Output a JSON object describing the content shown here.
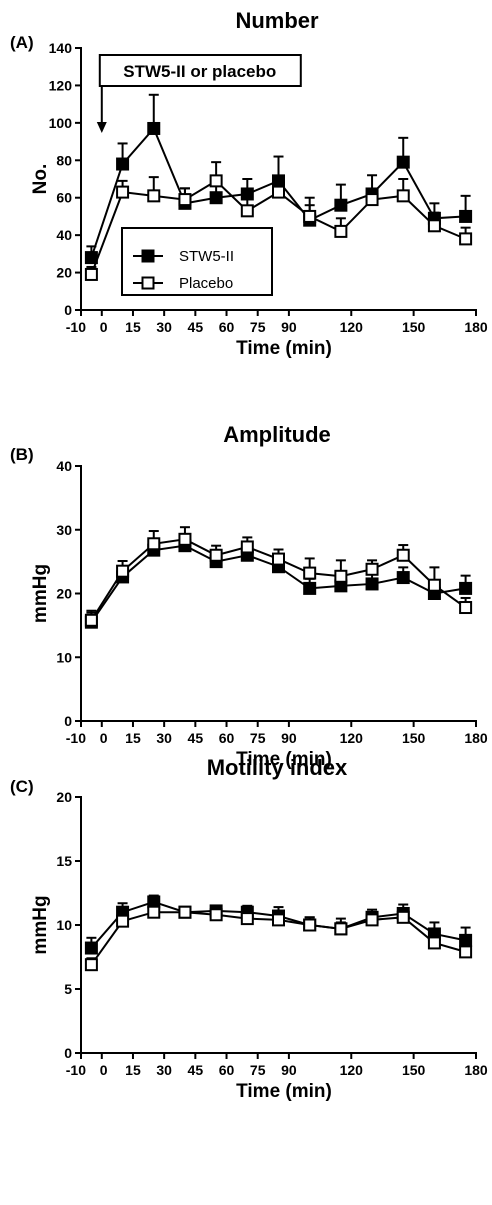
{
  "chart_data": [
    {
      "panel_label": "(A)",
      "type": "line",
      "title": "Number",
      "xlabel": "Time (min)",
      "ylabel": "No.",
      "xlim": [
        -10,
        180
      ],
      "ylim": [
        0,
        140
      ],
      "x_ticks": [
        -10,
        0,
        15,
        30,
        45,
        60,
        75,
        90,
        120,
        150,
        180
      ],
      "y_ticks": [
        0,
        20,
        40,
        60,
        80,
        100,
        120,
        140
      ],
      "legend": {
        "placement": "lower-left",
        "entries": [
          "STW5-II",
          "Placebo"
        ]
      },
      "annotation": {
        "text": "STW5-II or placebo",
        "arrow_at_x": 0
      },
      "series": [
        {
          "name": "STW5-II",
          "marker": "filled-square",
          "x": [
            -5,
            10,
            25,
            40,
            55,
            70,
            85,
            100,
            115,
            130,
            145,
            160,
            175
          ],
          "values": [
            28,
            78,
            97,
            57,
            60,
            62,
            69,
            48,
            56,
            62,
            79,
            49,
            50
          ],
          "error": [
            6,
            11,
            18,
            8,
            8,
            8,
            13,
            12,
            11,
            10,
            13,
            8,
            11
          ]
        },
        {
          "name": "Placebo",
          "marker": "open-square",
          "x": [
            -5,
            10,
            25,
            40,
            55,
            70,
            85,
            100,
            115,
            130,
            145,
            160,
            175
          ],
          "values": [
            19,
            63,
            61,
            59,
            69,
            53,
            63,
            50,
            42,
            59,
            61,
            45,
            38
          ],
          "error": [
            4,
            6,
            10,
            6,
            10,
            8,
            8,
            6,
            7,
            5,
            9,
            7,
            6
          ]
        }
      ]
    },
    {
      "panel_label": "(B)",
      "type": "line",
      "title": "Amplitude",
      "xlabel": "Time (min)",
      "ylabel": "mmHg",
      "xlim": [
        -10,
        180
      ],
      "ylim": [
        0,
        40
      ],
      "x_ticks": [
        -10,
        0,
        15,
        30,
        45,
        60,
        75,
        90,
        120,
        150,
        180
      ],
      "y_ticks": [
        0,
        10,
        20,
        30,
        40
      ],
      "series": [
        {
          "name": "STW5-II",
          "marker": "filled-square",
          "x": [
            -5,
            10,
            25,
            40,
            55,
            70,
            85,
            100,
            115,
            130,
            145,
            160,
            175
          ],
          "values": [
            15.5,
            22.6,
            26.8,
            27.5,
            25.0,
            26.0,
            24.2,
            20.8,
            21.2,
            21.5,
            22.5,
            20.0,
            20.8
          ],
          "error": [
            1.5,
            1.6,
            1.6,
            1.6,
            1.5,
            1.5,
            1.5,
            1.5,
            1.5,
            1.5,
            1.6,
            1.5,
            2.0
          ]
        },
        {
          "name": "Placebo",
          "marker": "open-square",
          "x": [
            -5,
            10,
            25,
            40,
            55,
            70,
            85,
            100,
            115,
            130,
            145,
            160,
            175
          ],
          "values": [
            15.8,
            23.5,
            27.8,
            28.5,
            26.0,
            27.3,
            25.4,
            23.2,
            22.7,
            23.8,
            26.0,
            21.3,
            17.8
          ],
          "error": [
            1.5,
            1.6,
            2.0,
            1.9,
            1.5,
            1.5,
            1.5,
            2.3,
            2.5,
            1.4,
            1.6,
            2.8,
            1.5
          ]
        }
      ]
    },
    {
      "panel_label": "(C)",
      "type": "line",
      "title": "Motility index",
      "xlabel": "Time (min)",
      "ylabel": "mmHg",
      "xlim": [
        -10,
        180
      ],
      "ylim": [
        0,
        20
      ],
      "x_ticks": [
        -10,
        0,
        15,
        30,
        45,
        60,
        75,
        90,
        120,
        150,
        180
      ],
      "y_ticks": [
        0,
        5,
        10,
        15,
        20
      ],
      "series": [
        {
          "name": "STW5-II",
          "marker": "filled-square",
          "x": [
            -5,
            10,
            25,
            40,
            55,
            70,
            85,
            100,
            115,
            130,
            145,
            160,
            175
          ],
          "values": [
            8.2,
            11.0,
            11.8,
            11.0,
            11.1,
            11.0,
            10.7,
            10.0,
            9.7,
            10.6,
            10.9,
            9.3,
            8.8
          ],
          "error": [
            0.8,
            0.7,
            0.5,
            0.4,
            0.4,
            0.5,
            0.7,
            0.6,
            0.8,
            0.6,
            0.7,
            0.9,
            1.0
          ]
        },
        {
          "name": "Placebo",
          "marker": "open-square",
          "x": [
            -5,
            10,
            25,
            40,
            55,
            70,
            85,
            100,
            115,
            130,
            145,
            160,
            175
          ],
          "values": [
            6.9,
            10.3,
            11.0,
            11.0,
            10.8,
            10.5,
            10.4,
            10.0,
            9.7,
            10.4,
            10.6,
            8.6,
            7.9
          ],
          "error": [
            0.5,
            0.5,
            0.5,
            0.4,
            0.4,
            0.4,
            0.5,
            0.6,
            0.5,
            0.5,
            0.5,
            0.6,
            0.6
          ]
        }
      ]
    }
  ]
}
